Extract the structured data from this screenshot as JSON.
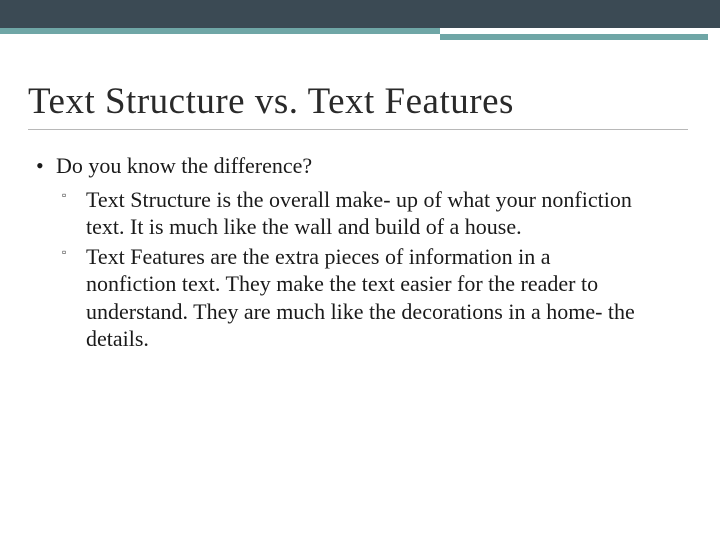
{
  "colors": {
    "topbar": "#3b4a54",
    "accent": "#6fa6a6",
    "text": "#1a1a1a",
    "title": "#2a2a2a",
    "underline": "#b8b8b8",
    "background": "#ffffff"
  },
  "typography": {
    "title_fontsize": 37,
    "body_fontsize": 22,
    "font_family": "Georgia, Times New Roman, serif"
  },
  "slide": {
    "title": "Text Structure vs. Text Features",
    "level1_bullet_glyph": "•",
    "level2_bullet_glyph": "▫",
    "question": "Do you know the difference?",
    "points": [
      "Text Structure is the overall make- up of what your nonfiction text.  It is much like the wall and build of a house.",
      "Text Features are the extra pieces of information in a nonfiction text.  They make the text easier for the reader to understand.  They are much like the decorations in a home- the details."
    ]
  }
}
